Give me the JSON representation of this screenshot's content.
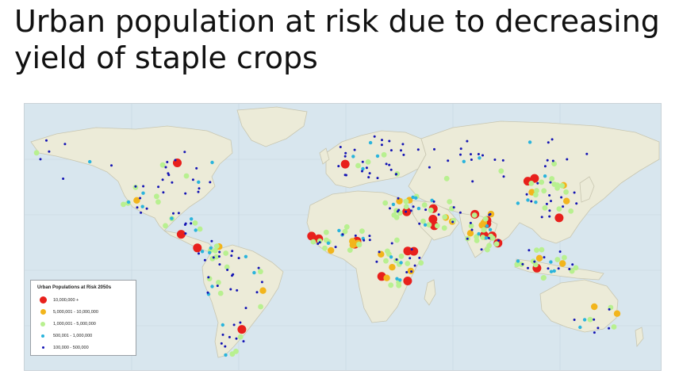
{
  "slide": {
    "title": "Urban population at risk due to decreasing yield of staple crops"
  },
  "map": {
    "land_color": "#ecebd8",
    "ocean_color": "#d8e6ee"
  },
  "legend": {
    "title": "Urban Populations at Risk 2050s",
    "classes": [
      {
        "label": "10,000,000 +",
        "color": "#e8201c",
        "icon": "large-red-dot"
      },
      {
        "label": "5,000,001 - 10,000,000",
        "color": "#f2b51c",
        "icon": "orange-dot"
      },
      {
        "label": "1,000,001 - 5,000,000",
        "color": "#b8f090",
        "icon": "light-green-dot"
      },
      {
        "label": "500,001 - 1,000,000",
        "color": "#2ab4dc",
        "icon": "cyan-dot"
      },
      {
        "label": "100,000 - 500,000",
        "color": "#1414b4",
        "icon": "small-blue-dot"
      }
    ]
  }
}
